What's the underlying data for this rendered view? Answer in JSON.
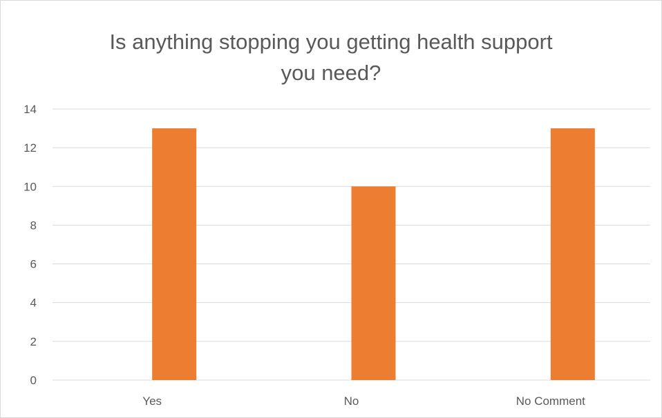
{
  "chart_data": {
    "type": "bar",
    "title_lines": [
      "Is anything stopping you getting health support",
      "you need?"
    ],
    "title": "Is anything stopping you getting health support you need?",
    "categories": [
      "Yes",
      "No",
      "No Comment"
    ],
    "values": [
      13,
      10,
      13
    ],
    "xlabel": "",
    "ylabel": "",
    "ylim": [
      0,
      14
    ],
    "yticks": [
      0,
      2,
      4,
      6,
      8,
      10,
      12,
      14
    ],
    "grid": true,
    "legend": "none",
    "bar_color": "#ED7D31",
    "grid_color": "#D9D9D9",
    "text_color": "#595959"
  }
}
